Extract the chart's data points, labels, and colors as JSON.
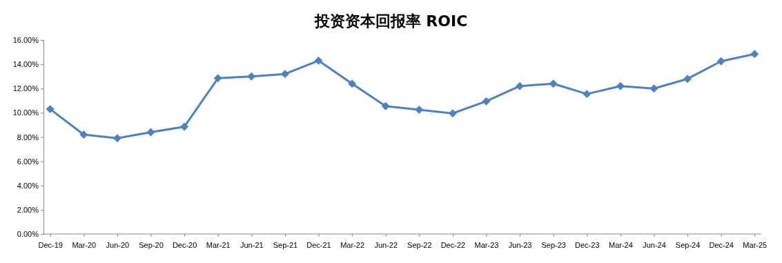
{
  "chart_data": {
    "type": "line",
    "title": "投资资本回报率 ROIC",
    "categories": [
      "Dec-19",
      "Mar-20",
      "Jun-20",
      "Sep-20",
      "Dec-20",
      "Mar-21",
      "Jun-21",
      "Sep-21",
      "Dec-21",
      "Mar-22",
      "Jun-22",
      "Sep-22",
      "Dec-22",
      "Mar-23",
      "Jun-23",
      "Sep-23",
      "Dec-23",
      "Mar-24",
      "Jun-24",
      "Sep-24",
      "Dec-24",
      "Mar-25"
    ],
    "series": [
      {
        "color": "#4f81bd",
        "values": [
          10.3,
          8.2,
          7.9,
          8.4,
          8.85,
          12.85,
          13.0,
          13.2,
          14.3,
          12.4,
          10.55,
          10.25,
          9.95,
          10.95,
          12.2,
          12.4,
          11.55,
          12.2,
          12.0,
          12.8,
          14.25,
          14.85
        ]
      }
    ],
    "ylim": [
      0,
      16
    ],
    "yticks": [
      {
        "value": 0,
        "label": "0.00%"
      },
      {
        "value": 2,
        "label": "2.00%"
      },
      {
        "value": 4,
        "label": "4.00%"
      },
      {
        "value": 6,
        "label": "6.00%"
      },
      {
        "value": 8,
        "label": "8.00%"
      },
      {
        "value": 10,
        "label": "10.00%"
      },
      {
        "value": 12,
        "label": "12.00%"
      },
      {
        "value": 14,
        "label": "14.00%"
      },
      {
        "value": 16,
        "label": "16.00%"
      }
    ],
    "marker": "diamond",
    "line_style": "solid",
    "grid": false
  }
}
